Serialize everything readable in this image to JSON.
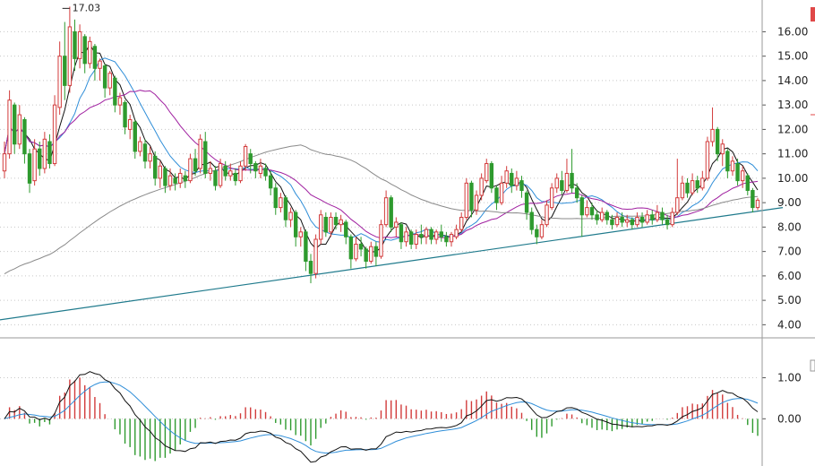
{
  "chart_data": [
    {
      "type": "candlestick",
      "panel": "price",
      "y_axis_ticks": [
        "16.00",
        "15.00",
        "14.00",
        "13.00",
        "12.00",
        "11.00",
        "10.00",
        "9.00",
        "8.00",
        "7.00",
        "6.00",
        "5.00",
        "4.00"
      ],
      "ylim": [
        3.5,
        17.3
      ],
      "grid": "dotted horizontal",
      "up_color": "#d23b3b",
      "down_color": "#2e9a2e",
      "annotation": {
        "text": "17.03",
        "at_index": 11,
        "value": 17.03
      },
      "candles": [
        {
          "o": 10.3,
          "c": 11.0,
          "h": 11.5,
          "l": 10.0
        },
        {
          "o": 11.0,
          "c": 13.2,
          "h": 13.6,
          "l": 10.8
        },
        {
          "o": 13.0,
          "c": 11.4,
          "h": 13.1,
          "l": 11.0
        },
        {
          "o": 11.4,
          "c": 12.6,
          "h": 13.0,
          "l": 11.2
        },
        {
          "o": 12.4,
          "c": 11.0,
          "h": 12.5,
          "l": 10.6
        },
        {
          "o": 11.0,
          "c": 9.8,
          "h": 11.2,
          "l": 9.4
        },
        {
          "o": 9.9,
          "c": 11.2,
          "h": 11.6,
          "l": 9.7
        },
        {
          "o": 11.2,
          "c": 10.4,
          "h": 11.5,
          "l": 10.1
        },
        {
          "o": 10.4,
          "c": 11.6,
          "h": 11.9,
          "l": 10.2
        },
        {
          "o": 11.5,
          "c": 10.6,
          "h": 11.8,
          "l": 10.4
        },
        {
          "o": 10.6,
          "c": 13.0,
          "h": 13.4,
          "l": 10.5
        },
        {
          "o": 12.9,
          "c": 15.0,
          "h": 15.6,
          "l": 12.6
        },
        {
          "o": 15.0,
          "c": 13.8,
          "h": 16.4,
          "l": 13.2
        },
        {
          "o": 13.8,
          "c": 16.2,
          "h": 17.03,
          "l": 13.5
        },
        {
          "o": 16.0,
          "c": 14.9,
          "h": 16.5,
          "l": 14.4
        },
        {
          "o": 14.9,
          "c": 16.0,
          "h": 16.3,
          "l": 14.5
        },
        {
          "o": 15.8,
          "c": 14.7,
          "h": 15.9,
          "l": 14.3
        },
        {
          "o": 14.7,
          "c": 15.6,
          "h": 15.8,
          "l": 14.5
        },
        {
          "o": 15.4,
          "c": 14.5,
          "h": 15.5,
          "l": 14.0
        },
        {
          "o": 14.5,
          "c": 14.8,
          "h": 14.9,
          "l": 14.0
        },
        {
          "o": 14.6,
          "c": 13.7,
          "h": 14.7,
          "l": 13.3
        },
        {
          "o": 13.7,
          "c": 14.3,
          "h": 14.4,
          "l": 13.4
        },
        {
          "o": 14.1,
          "c": 13.0,
          "h": 14.2,
          "l": 12.7
        },
        {
          "o": 13.0,
          "c": 13.3,
          "h": 13.5,
          "l": 12.6
        },
        {
          "o": 13.1,
          "c": 12.1,
          "h": 13.2,
          "l": 11.8
        },
        {
          "o": 12.0,
          "c": 12.4,
          "h": 12.6,
          "l": 11.6
        },
        {
          "o": 12.3,
          "c": 11.1,
          "h": 12.4,
          "l": 10.8
        },
        {
          "o": 11.1,
          "c": 11.5,
          "h": 11.7,
          "l": 10.9
        },
        {
          "o": 11.4,
          "c": 10.7,
          "h": 11.6,
          "l": 10.4
        },
        {
          "o": 10.7,
          "c": 11.0,
          "h": 11.3,
          "l": 10.4
        },
        {
          "o": 10.9,
          "c": 10.0,
          "h": 11.1,
          "l": 9.7
        },
        {
          "o": 10.0,
          "c": 10.5,
          "h": 10.7,
          "l": 9.6
        },
        {
          "o": 10.4,
          "c": 9.7,
          "h": 10.5,
          "l": 9.4
        },
        {
          "o": 9.7,
          "c": 10.1,
          "h": 10.4,
          "l": 9.5
        },
        {
          "o": 10.0,
          "c": 9.8,
          "h": 10.2,
          "l": 9.5
        },
        {
          "o": 9.8,
          "c": 10.2,
          "h": 10.4,
          "l": 9.6
        },
        {
          "o": 10.1,
          "c": 9.9,
          "h": 10.3,
          "l": 9.6
        },
        {
          "o": 9.9,
          "c": 10.8,
          "h": 11.0,
          "l": 9.8
        },
        {
          "o": 10.8,
          "c": 10.3,
          "h": 11.2,
          "l": 10.1
        },
        {
          "o": 10.4,
          "c": 11.6,
          "h": 11.8,
          "l": 10.2
        },
        {
          "o": 11.5,
          "c": 10.2,
          "h": 11.9,
          "l": 10.0
        },
        {
          "o": 10.2,
          "c": 10.4,
          "h": 10.7,
          "l": 9.9
        },
        {
          "o": 10.3,
          "c": 9.7,
          "h": 10.5,
          "l": 9.5
        },
        {
          "o": 9.7,
          "c": 10.6,
          "h": 10.8,
          "l": 9.6
        },
        {
          "o": 10.5,
          "c": 10.1,
          "h": 10.7,
          "l": 9.9
        },
        {
          "o": 10.1,
          "c": 10.3,
          "h": 10.6,
          "l": 9.9
        },
        {
          "o": 10.2,
          "c": 9.9,
          "h": 10.4,
          "l": 9.7
        },
        {
          "o": 9.9,
          "c": 10.5,
          "h": 10.7,
          "l": 9.8
        },
        {
          "o": 10.5,
          "c": 11.3,
          "h": 11.4,
          "l": 10.3
        },
        {
          "o": 11.0,
          "c": 10.6,
          "h": 11.2,
          "l": 10.2
        },
        {
          "o": 10.6,
          "c": 10.3,
          "h": 10.7,
          "l": 10.0
        },
        {
          "o": 10.2,
          "c": 10.5,
          "h": 10.8,
          "l": 10.0
        },
        {
          "o": 10.4,
          "c": 10.1,
          "h": 10.6,
          "l": 9.9
        },
        {
          "o": 10.1,
          "c": 9.6,
          "h": 10.3,
          "l": 9.3
        },
        {
          "o": 9.6,
          "c": 8.8,
          "h": 9.8,
          "l": 8.5
        },
        {
          "o": 8.8,
          "c": 9.2,
          "h": 9.4,
          "l": 8.6
        },
        {
          "o": 9.2,
          "c": 8.3,
          "h": 9.3,
          "l": 8.0
        },
        {
          "o": 8.3,
          "c": 8.6,
          "h": 8.8,
          "l": 8.0
        },
        {
          "o": 8.6,
          "c": 7.6,
          "h": 8.7,
          "l": 7.2
        },
        {
          "o": 7.6,
          "c": 7.8,
          "h": 8.0,
          "l": 7.2
        },
        {
          "o": 7.8,
          "c": 6.6,
          "h": 7.9,
          "l": 6.2
        },
        {
          "o": 6.6,
          "c": 6.1,
          "h": 6.9,
          "l": 5.7
        },
        {
          "o": 6.1,
          "c": 7.5,
          "h": 7.7,
          "l": 5.9
        },
        {
          "o": 7.5,
          "c": 8.5,
          "h": 8.7,
          "l": 7.3
        },
        {
          "o": 8.4,
          "c": 7.8,
          "h": 8.6,
          "l": 7.6
        },
        {
          "o": 7.8,
          "c": 8.4,
          "h": 8.6,
          "l": 7.6
        },
        {
          "o": 8.4,
          "c": 8.1,
          "h": 8.6,
          "l": 7.9
        },
        {
          "o": 8.1,
          "c": 8.3,
          "h": 8.5,
          "l": 7.8
        },
        {
          "o": 8.2,
          "c": 7.6,
          "h": 8.3,
          "l": 7.3
        },
        {
          "o": 7.6,
          "c": 6.7,
          "h": 7.7,
          "l": 6.3
        },
        {
          "o": 6.7,
          "c": 7.3,
          "h": 7.6,
          "l": 6.6
        },
        {
          "o": 7.3,
          "c": 7.1,
          "h": 7.6,
          "l": 6.8
        },
        {
          "o": 7.1,
          "c": 6.6,
          "h": 7.2,
          "l": 6.3
        },
        {
          "o": 6.6,
          "c": 7.2,
          "h": 7.4,
          "l": 6.5
        },
        {
          "o": 7.2,
          "c": 6.8,
          "h": 7.4,
          "l": 6.4
        },
        {
          "o": 6.8,
          "c": 8.1,
          "h": 8.3,
          "l": 6.7
        },
        {
          "o": 8.1,
          "c": 9.2,
          "h": 9.5,
          "l": 8.0
        },
        {
          "o": 9.2,
          "c": 8.0,
          "h": 9.3,
          "l": 7.8
        },
        {
          "o": 8.0,
          "c": 8.2,
          "h": 8.4,
          "l": 7.6
        },
        {
          "o": 8.1,
          "c": 7.4,
          "h": 8.2,
          "l": 7.1
        },
        {
          "o": 7.4,
          "c": 7.8,
          "h": 8.0,
          "l": 7.2
        },
        {
          "o": 7.8,
          "c": 7.3,
          "h": 7.9,
          "l": 7.1
        },
        {
          "o": 7.3,
          "c": 7.7,
          "h": 7.9,
          "l": 7.1
        },
        {
          "o": 7.7,
          "c": 7.6,
          "h": 8.1,
          "l": 7.3
        },
        {
          "o": 7.6,
          "c": 7.9,
          "h": 8.0,
          "l": 7.3
        },
        {
          "o": 7.9,
          "c": 7.5,
          "h": 8.0,
          "l": 7.3
        },
        {
          "o": 7.5,
          "c": 7.8,
          "h": 7.9,
          "l": 7.3
        },
        {
          "o": 7.8,
          "c": 7.6,
          "h": 8.1,
          "l": 7.4
        },
        {
          "o": 7.6,
          "c": 7.4,
          "h": 7.8,
          "l": 7.2
        },
        {
          "o": 7.4,
          "c": 7.7,
          "h": 7.8,
          "l": 7.2
        },
        {
          "o": 7.6,
          "c": 7.9,
          "h": 8.1,
          "l": 7.5
        },
        {
          "o": 7.9,
          "c": 8.4,
          "h": 8.6,
          "l": 7.8
        },
        {
          "o": 8.4,
          "c": 9.8,
          "h": 10.0,
          "l": 8.3
        },
        {
          "o": 9.8,
          "c": 8.7,
          "h": 9.9,
          "l": 8.4
        },
        {
          "o": 8.7,
          "c": 9.3,
          "h": 9.5,
          "l": 8.5
        },
        {
          "o": 9.3,
          "c": 10.0,
          "h": 10.2,
          "l": 9.1
        },
        {
          "o": 9.9,
          "c": 10.6,
          "h": 10.8,
          "l": 9.8
        },
        {
          "o": 10.6,
          "c": 9.6,
          "h": 10.7,
          "l": 9.4
        },
        {
          "o": 9.6,
          "c": 9.0,
          "h": 9.7,
          "l": 8.7
        },
        {
          "o": 9.0,
          "c": 9.8,
          "h": 10.1,
          "l": 8.9
        },
        {
          "o": 9.8,
          "c": 10.3,
          "h": 10.5,
          "l": 9.6
        },
        {
          "o": 10.2,
          "c": 9.7,
          "h": 10.4,
          "l": 9.4
        },
        {
          "o": 9.7,
          "c": 10.0,
          "h": 10.3,
          "l": 9.5
        },
        {
          "o": 9.9,
          "c": 9.5,
          "h": 10.1,
          "l": 9.2
        },
        {
          "o": 9.4,
          "c": 8.6,
          "h": 9.5,
          "l": 8.3
        },
        {
          "o": 8.6,
          "c": 7.9,
          "h": 8.8,
          "l": 7.7
        },
        {
          "o": 7.9,
          "c": 7.6,
          "h": 8.1,
          "l": 7.3
        },
        {
          "o": 7.6,
          "c": 8.1,
          "h": 8.3,
          "l": 7.5
        },
        {
          "o": 8.1,
          "c": 8.9,
          "h": 9.1,
          "l": 8.0
        },
        {
          "o": 8.8,
          "c": 9.6,
          "h": 9.8,
          "l": 8.7
        },
        {
          "o": 9.6,
          "c": 10.0,
          "h": 10.2,
          "l": 9.4
        },
        {
          "o": 9.9,
          "c": 9.5,
          "h": 10.3,
          "l": 9.3
        },
        {
          "o": 9.5,
          "c": 10.2,
          "h": 10.8,
          "l": 9.4
        },
        {
          "o": 10.2,
          "c": 9.6,
          "h": 11.2,
          "l": 9.4
        },
        {
          "o": 9.6,
          "c": 9.2,
          "h": 9.8,
          "l": 9.0
        },
        {
          "o": 9.2,
          "c": 8.5,
          "h": 9.3,
          "l": 7.6
        },
        {
          "o": 8.5,
          "c": 8.8,
          "h": 9.1,
          "l": 8.4
        },
        {
          "o": 8.8,
          "c": 8.5,
          "h": 9.0,
          "l": 8.3
        },
        {
          "o": 8.5,
          "c": 8.3,
          "h": 8.7,
          "l": 8.1
        },
        {
          "o": 8.3,
          "c": 8.6,
          "h": 8.8,
          "l": 8.2
        },
        {
          "o": 8.6,
          "c": 8.3,
          "h": 8.7,
          "l": 8.1
        },
        {
          "o": 8.3,
          "c": 8.1,
          "h": 8.5,
          "l": 7.9
        },
        {
          "o": 8.1,
          "c": 8.4,
          "h": 8.6,
          "l": 8.0
        },
        {
          "o": 8.4,
          "c": 8.2,
          "h": 8.6,
          "l": 8.0
        },
        {
          "o": 8.2,
          "c": 8.3,
          "h": 8.5,
          "l": 8.0
        },
        {
          "o": 8.3,
          "c": 8.1,
          "h": 8.4,
          "l": 7.9
        },
        {
          "o": 8.1,
          "c": 8.4,
          "h": 8.6,
          "l": 8.0
        },
        {
          "o": 8.4,
          "c": 8.2,
          "h": 8.6,
          "l": 8.0
        },
        {
          "o": 8.2,
          "c": 8.5,
          "h": 8.7,
          "l": 8.1
        },
        {
          "o": 8.5,
          "c": 8.3,
          "h": 8.7,
          "l": 8.1
        },
        {
          "o": 8.3,
          "c": 8.6,
          "h": 8.9,
          "l": 8.2
        },
        {
          "o": 8.6,
          "c": 8.3,
          "h": 8.8,
          "l": 8.1
        },
        {
          "o": 8.3,
          "c": 8.1,
          "h": 8.5,
          "l": 7.9
        },
        {
          "o": 8.1,
          "c": 8.6,
          "h": 8.8,
          "l": 8.0
        },
        {
          "o": 8.6,
          "c": 9.2,
          "h": 10.8,
          "l": 8.5
        },
        {
          "o": 9.2,
          "c": 9.8,
          "h": 10.1,
          "l": 9.1
        },
        {
          "o": 9.8,
          "c": 9.4,
          "h": 10.0,
          "l": 9.2
        },
        {
          "o": 9.4,
          "c": 9.9,
          "h": 10.2,
          "l": 9.3
        },
        {
          "o": 9.9,
          "c": 9.6,
          "h": 10.1,
          "l": 9.4
        },
        {
          "o": 9.6,
          "c": 10.0,
          "h": 10.3,
          "l": 9.5
        },
        {
          "o": 10.0,
          "c": 11.5,
          "h": 11.7,
          "l": 9.9
        },
        {
          "o": 11.5,
          "c": 12.0,
          "h": 12.9,
          "l": 11.3
        },
        {
          "o": 12.0,
          "c": 11.0,
          "h": 12.1,
          "l": 10.7
        },
        {
          "o": 11.0,
          "c": 11.4,
          "h": 11.6,
          "l": 10.5
        },
        {
          "o": 11.1,
          "c": 10.3,
          "h": 11.2,
          "l": 10.0
        },
        {
          "o": 10.3,
          "c": 10.7,
          "h": 10.9,
          "l": 10.1
        },
        {
          "o": 10.6,
          "c": 9.9,
          "h": 10.8,
          "l": 9.7
        },
        {
          "o": 9.9,
          "c": 10.3,
          "h": 10.5,
          "l": 9.6
        },
        {
          "o": 10.1,
          "c": 9.5,
          "h": 10.2,
          "l": 9.3
        },
        {
          "o": 9.5,
          "c": 8.8,
          "h": 9.6,
          "l": 8.6
        },
        {
          "o": 8.8,
          "c": 9.1,
          "h": 9.2,
          "l": 8.7
        }
      ],
      "trendline": {
        "color": "#1f7a8c",
        "from": {
          "index": -1,
          "value": 4.2
        },
        "to": {
          "index": 155,
          "value": 8.8
        }
      },
      "series": [
        {
          "kind": "moving-average",
          "color": "#111111",
          "period": 5
        },
        {
          "kind": "moving-average",
          "color": "#2f8ed8",
          "period": 10
        },
        {
          "kind": "moving-average",
          "color": "#a020a0",
          "period": 20
        },
        {
          "kind": "moving-average",
          "color": "#8a8a8a",
          "period": 60
        }
      ]
    },
    {
      "type": "macd",
      "panel": "indicator",
      "y_axis_ticks": [
        "1.00",
        "0.00"
      ],
      "ylim": [
        -1.15,
        1.95
      ],
      "grid": "dotted horizontal",
      "series": [
        {
          "kind": "dif",
          "color": "#111111"
        },
        {
          "kind": "dea",
          "color": "#2f8ed8"
        },
        {
          "kind": "histogram",
          "up_color": "#d23b3b",
          "down_color": "#2e9a2e"
        }
      ]
    }
  ]
}
